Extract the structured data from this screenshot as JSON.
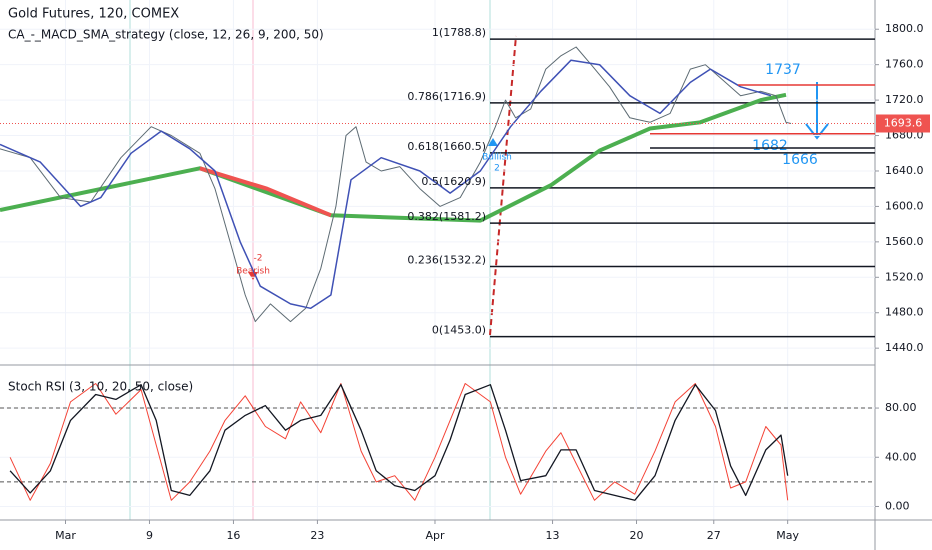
{
  "chart_data": [
    {
      "type": "line",
      "title": "Gold Futures, 120, COMEX",
      "subtitle": "CA_-_MACD_SMA_strategy (close, 12, 26, 9, 200, 50)",
      "xlim": [
        -3.9,
        48.2
      ],
      "ylim": [
        1421,
        1833
      ],
      "grid": true,
      "xticks": [
        {
          "value": 0,
          "label": "Mar"
        },
        {
          "value": 5,
          "label": "9"
        },
        {
          "value": 10,
          "label": "16"
        },
        {
          "value": 15,
          "label": "23"
        },
        {
          "value": 22,
          "label": "Apr"
        },
        {
          "value": 29,
          "label": "13"
        },
        {
          "value": 34,
          "label": "20"
        },
        {
          "value": 38.6,
          "label": "27"
        },
        {
          "value": 43,
          "label": "May"
        }
      ],
      "yticks": [
        {
          "value": 1440,
          "label": "1440.0"
        },
        {
          "value": 1480,
          "label": "1480.0"
        },
        {
          "value": 1520,
          "label": "1520.0"
        },
        {
          "value": 1560,
          "label": "1560.0"
        },
        {
          "value": 1600,
          "label": "1600.0"
        },
        {
          "value": 1640,
          "label": "1640.0"
        },
        {
          "value": 1680,
          "label": "1680.0"
        },
        {
          "value": 1720,
          "label": "1720.0"
        },
        {
          "value": 1760,
          "label": "1760.0"
        },
        {
          "value": 1800,
          "label": "1800.0"
        }
      ],
      "series": [
        {
          "color": "#4caf50",
          "width": 4,
          "x": [
            -3.9,
            8.0,
            15.8,
            24.7,
            28.9,
            31.8,
            34.8,
            37.8,
            41.4,
            42.9
          ],
          "values": [
            1596,
            1643,
            1590,
            1584,
            1624,
            1663,
            1688,
            1695,
            1720,
            1726
          ]
        },
        {
          "color": "#ef5350",
          "width": 4,
          "x": [
            8.0,
            12.0,
            15.8
          ],
          "values": [
            1643,
            1620,
            1590
          ]
        },
        {
          "color": "#5d6b73",
          "width": 1,
          "x": [
            -3.9,
            -2.1,
            -0.3,
            1.5,
            3.3,
            5.1,
            6.3,
            8.0,
            8.9,
            9.8,
            10.7,
            11.3,
            12.2,
            13.4,
            14.3,
            15.2,
            16.1,
            16.7,
            17.3,
            17.9,
            18.8,
            19.9,
            21.1,
            22.3,
            23.5,
            24.7,
            25.6,
            26.2,
            26.8,
            27.7,
            28.6,
            29.5,
            30.4,
            31.3,
            32.4,
            33.6,
            34.8,
            36.0,
            37.2,
            38.1,
            39.0,
            40.2,
            41.4,
            42.3,
            42.9,
            43.2
          ],
          "values": [
            1665,
            1655,
            1610,
            1605,
            1655,
            1690,
            1680,
            1660,
            1620,
            1560,
            1500,
            1470,
            1490,
            1470,
            1485,
            1530,
            1600,
            1680,
            1690,
            1650,
            1640,
            1645,
            1620,
            1600,
            1610,
            1650,
            1690,
            1720,
            1700,
            1710,
            1755,
            1770,
            1780,
            1760,
            1735,
            1700,
            1695,
            1705,
            1755,
            1760,
            1745,
            1725,
            1730,
            1725,
            1695,
            1693.6
          ]
        },
        {
          "color": "#3f51b5",
          "width": 1.5,
          "x": [
            -3.9,
            -1.5,
            0.9,
            2.1,
            3.9,
            5.7,
            7.4,
            8.9,
            10.4,
            11.6,
            13.4,
            14.6,
            15.8,
            17.0,
            18.8,
            21.1,
            22.9,
            24.7,
            26.5,
            28.3,
            30.1,
            31.8,
            33.6,
            35.4,
            37.2,
            38.4,
            40.2,
            42.0
          ],
          "values": [
            1670,
            1650,
            1600,
            1610,
            1660,
            1685,
            1665,
            1640,
            1560,
            1510,
            1490,
            1485,
            1500,
            1630,
            1655,
            1640,
            1615,
            1640,
            1690,
            1730,
            1765,
            1760,
            1725,
            1705,
            1740,
            1755,
            1735,
            1725
          ]
        }
      ],
      "fib_levels": {
        "values": [
          1788.8,
          1716.9,
          1660.5,
          1620.9,
          1581.2,
          1532.2,
          1453.0
        ],
        "value_labels": [
          "1(1788.8)",
          "0.786(1716.9)",
          "0.618(1660.5)",
          "0.5(1620.9)",
          "0.382(1581.2)",
          "0.236(1532.2)",
          "0(1453.0)"
        ]
      },
      "levels": [
        1737,
        1682,
        1666
      ],
      "level_colors": [
        "#e53935",
        "#e53935",
        "#131722"
      ],
      "last_price": 1693.6,
      "annotations": [
        "-2",
        "Bearish",
        "2",
        "Bullish"
      ]
    },
    {
      "type": "line",
      "title": "Stoch RSI (3, 10, 20, 50, close)",
      "xlim": [
        -3.9,
        48.2
      ],
      "ylim": [
        -11,
        115
      ],
      "yticks": [
        {
          "value": 0,
          "label": "0.00"
        },
        {
          "value": 40,
          "label": "40.00"
        },
        {
          "value": 80,
          "label": "80.00"
        }
      ],
      "bands": [
        80,
        20
      ],
      "series": [
        {
          "color": "#f44336",
          "width": 1,
          "x": [
            -3.3,
            -2.1,
            -0.9,
            0.3,
            1.8,
            3.0,
            4.5,
            5.4,
            6.3,
            7.4,
            8.6,
            9.5,
            10.7,
            11.9,
            13.1,
            14.0,
            15.2,
            16.4,
            17.6,
            18.5,
            19.6,
            20.8,
            22.0,
            22.9,
            23.8,
            25.3,
            26.2,
            27.1,
            28.6,
            29.5,
            30.4,
            31.5,
            32.7,
            33.9,
            35.1,
            36.3,
            37.5,
            38.7,
            39.6,
            40.5,
            41.7,
            42.6,
            43.0
          ],
          "values": [
            40,
            5,
            35,
            85,
            100,
            75,
            95,
            50,
            5,
            20,
            45,
            70,
            90,
            65,
            55,
            85,
            60,
            100,
            45,
            20,
            25,
            5,
            40,
            70,
            100,
            85,
            40,
            10,
            45,
            60,
            35,
            5,
            20,
            10,
            45,
            85,
            100,
            65,
            15,
            20,
            65,
            50,
            5
          ]
        },
        {
          "color": "#131722",
          "width": 1.3,
          "x": [
            -3.3,
            -2.1,
            -0.9,
            0.3,
            1.8,
            3.0,
            4.5,
            5.4,
            6.3,
            7.4,
            8.6,
            9.5,
            10.7,
            11.9,
            13.1,
            14.0,
            15.2,
            16.4,
            17.6,
            18.5,
            19.6,
            20.8,
            22.0,
            22.9,
            23.8,
            25.3,
            26.2,
            27.1,
            28.6,
            29.5,
            30.4,
            31.5,
            32.7,
            33.9,
            35.1,
            36.3,
            37.5,
            38.7,
            39.6,
            40.5,
            41.7,
            42.6,
            43.0
          ],
          "values": [
            29,
            11,
            29,
            70,
            91,
            87,
            99,
            70,
            13,
            9,
            29,
            62,
            74,
            82,
            62,
            70,
            74,
            99,
            62,
            29,
            17,
            13,
            25,
            54,
            91,
            99,
            62,
            21,
            25,
            46,
            46,
            13,
            9,
            5,
            25,
            70,
            99,
            78,
            33,
            9,
            46,
            58,
            25
          ]
        }
      ]
    }
  ]
}
